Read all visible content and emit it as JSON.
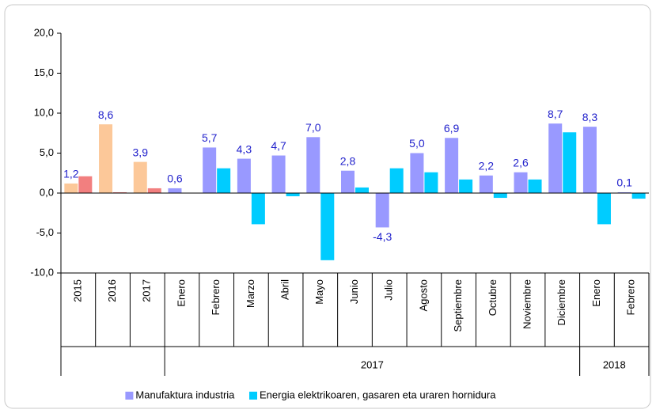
{
  "chart_data": {
    "type": "bar",
    "categories": [
      "2015",
      "2016",
      "2017",
      "Enero",
      "Febrero",
      "Marzo",
      "Abril",
      "Mayo",
      "Junio",
      "Julio",
      "Agosto",
      "Septiembre",
      "Octubre",
      "Noviembre",
      "Diciembre",
      "Enero",
      "Febrero"
    ],
    "groups": [
      {
        "label": "2017",
        "start": 3,
        "end": 14
      },
      {
        "label": "2018",
        "start": 15,
        "end": 16
      }
    ],
    "series": [
      {
        "name": "Manufaktura industria",
        "color": "#9999ff",
        "point_colors": [
          "#fcc899",
          "#fcc899",
          "#fcc899",
          "#9999ff",
          "#9999ff",
          "#9999ff",
          "#9999ff",
          "#9999ff",
          "#9999ff",
          "#9999ff",
          "#9999ff",
          "#9999ff",
          "#9999ff",
          "#9999ff",
          "#9999ff",
          "#9999ff",
          "#9999ff"
        ],
        "values": [
          1.2,
          8.6,
          3.9,
          0.6,
          5.7,
          4.3,
          4.7,
          7.0,
          2.8,
          -4.3,
          5.0,
          6.9,
          2.2,
          2.6,
          8.7,
          8.3,
          0.1
        ],
        "value_labels": [
          "1,2",
          "8,6",
          "3,9",
          "0,6",
          "5,7",
          "4,3",
          "4,7",
          "7,0",
          "2,8",
          "-4,3",
          "5,0",
          "6,9",
          "2,2",
          "2,6",
          "8,7",
          "8,3",
          "0,1"
        ]
      },
      {
        "name": "Energia elektrikoaren, gasaren eta uraren hornidura",
        "color": "#00ccff",
        "point_colors": [
          "#f27f7f",
          "#f27f7f",
          "#f27f7f",
          "#00ccff",
          "#00ccff",
          "#00ccff",
          "#00ccff",
          "#00ccff",
          "#00ccff",
          "#00ccff",
          "#00ccff",
          "#00ccff",
          "#00ccff",
          "#00ccff",
          "#00ccff",
          "#00ccff",
          "#00ccff"
        ],
        "values": [
          2.1,
          0.1,
          0.6,
          0.0,
          3.1,
          -3.9,
          -0.4,
          -8.4,
          0.7,
          3.1,
          2.6,
          1.7,
          -0.6,
          1.7,
          7.6,
          -3.9,
          -0.7
        ]
      }
    ],
    "label_color": "#2222cc",
    "ylim": [
      -10,
      20
    ],
    "yticks": [
      {
        "value": -10,
        "label": "-10,0"
      },
      {
        "value": -5,
        "label": "-5,0"
      },
      {
        "value": 0,
        "label": "0,0"
      },
      {
        "value": 5,
        "label": "5,0"
      },
      {
        "value": 10,
        "label": "10,0"
      },
      {
        "value": 15,
        "label": "15,0"
      },
      {
        "value": 20,
        "label": "20,0"
      }
    ],
    "grid": false,
    "legend": "bottom"
  }
}
